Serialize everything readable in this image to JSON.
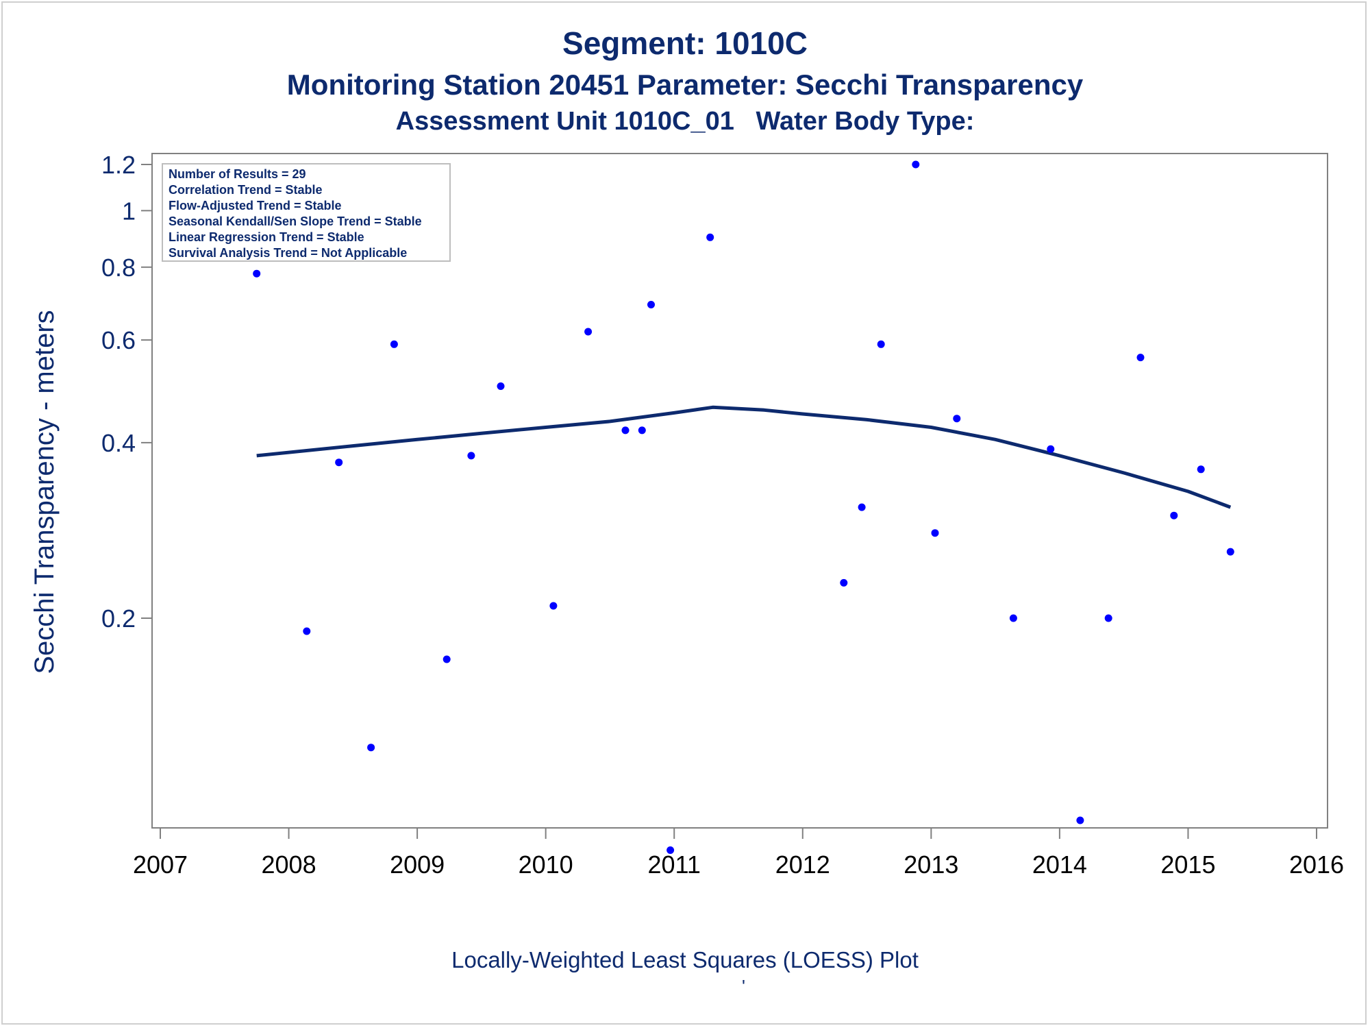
{
  "colors": {
    "text": "#0d2a6e",
    "marker": "#0000ff",
    "trend": "#0d2a6e",
    "axis": "#808080"
  },
  "chart_data": {
    "type": "scatter",
    "title": "Segment: 1010C",
    "subtitle": "Monitoring Station 20451 Parameter: Secchi Transparency",
    "subtitle2": "Assessment Unit 1010C_01   Water Body Type:",
    "xlabel": "",
    "ylabel": "Secchi Transparency - meters",
    "footnote": "Locally-Weighted Least Squares (LOESS) Plot",
    "footnote_mark": "'",
    "xlim": [
      2007,
      2016
    ],
    "x_ticks": [
      2007,
      2008,
      2009,
      2010,
      2011,
      2012,
      2013,
      2014,
      2015,
      2016
    ],
    "y_scale": "log",
    "ylim": [
      0.08,
      1.25
    ],
    "y_ticks": [
      0.2,
      0.4,
      0.6,
      0.8,
      1,
      1.2
    ],
    "y_tick_labels": [
      "0.2",
      "0.4",
      "0.6",
      "0.8",
      "1",
      "1.2"
    ],
    "grid": false,
    "stats_box": {
      "placement": "top-left",
      "lines": [
        "Number of Results = 29",
        "Correlation Trend = Stable",
        "Flow-Adjusted Trend = Stable",
        "Seasonal Kendall/Sen Slope Trend = Stable",
        "Linear Regression Trend = Stable",
        "Survival Analysis Trend = Not Applicable"
      ]
    },
    "series": [
      {
        "type": "scatter",
        "points": [
          [
            2007.75,
            0.78
          ],
          [
            2008.14,
            0.19
          ],
          [
            2008.39,
            0.37
          ],
          [
            2008.64,
            0.12
          ],
          [
            2008.82,
            0.59
          ],
          [
            2009.23,
            0.17
          ],
          [
            2009.42,
            0.38
          ],
          [
            2009.65,
            0.5
          ],
          [
            2010.06,
            0.21
          ],
          [
            2010.33,
            0.62
          ],
          [
            2010.62,
            0.42
          ],
          [
            2010.75,
            0.42
          ],
          [
            2010.82,
            0.69
          ],
          [
            2010.97,
            0.08
          ],
          [
            2011.28,
            0.9
          ],
          [
            2012.32,
            0.23
          ],
          [
            2012.46,
            0.31
          ],
          [
            2012.61,
            0.59
          ],
          [
            2012.88,
            1.2
          ],
          [
            2013.03,
            0.28
          ],
          [
            2013.2,
            0.44
          ],
          [
            2013.64,
            0.2
          ],
          [
            2013.93,
            0.39
          ],
          [
            2014.16,
            0.09
          ],
          [
            2014.38,
            0.2
          ],
          [
            2014.63,
            0.56
          ],
          [
            2014.89,
            0.3
          ],
          [
            2015.1,
            0.36
          ],
          [
            2015.33,
            0.26
          ]
        ]
      },
      {
        "type": "line",
        "points": [
          [
            2007.75,
            0.38
          ],
          [
            2008.5,
            0.395
          ],
          [
            2009.0,
            0.405
          ],
          [
            2009.5,
            0.415
          ],
          [
            2010.0,
            0.425
          ],
          [
            2010.5,
            0.435
          ],
          [
            2011.0,
            0.45
          ],
          [
            2011.3,
            0.46
          ],
          [
            2011.7,
            0.455
          ],
          [
            2012.0,
            0.448
          ],
          [
            2012.5,
            0.438
          ],
          [
            2013.0,
            0.425
          ],
          [
            2013.5,
            0.405
          ],
          [
            2014.0,
            0.38
          ],
          [
            2014.5,
            0.355
          ],
          [
            2015.0,
            0.33
          ],
          [
            2015.33,
            0.31
          ]
        ]
      }
    ]
  }
}
